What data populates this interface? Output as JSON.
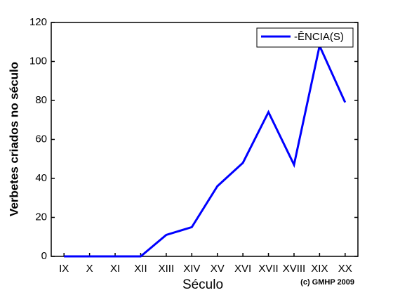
{
  "chart_data": {
    "type": "line",
    "xlabel": "Século",
    "ylabel": "Verbetes criados no século",
    "annotation": "(c) GMHP 2009",
    "categories": [
      "IX",
      "X",
      "XI",
      "XII",
      "XIII",
      "XIV",
      "XV",
      "XVI",
      "XVII",
      "XVIII",
      "XIX",
      "XX"
    ],
    "series": [
      {
        "name": "-ÊNCIA(S)",
        "color": "#0000ff",
        "values": [
          0,
          0,
          0,
          0,
          11,
          15,
          36,
          48,
          74,
          47,
          108,
          79
        ]
      }
    ],
    "ylim": [
      0,
      120
    ],
    "yticks": [
      0,
      20,
      40,
      60,
      80,
      100,
      120
    ],
    "grid": false,
    "legend": "upper right"
  }
}
